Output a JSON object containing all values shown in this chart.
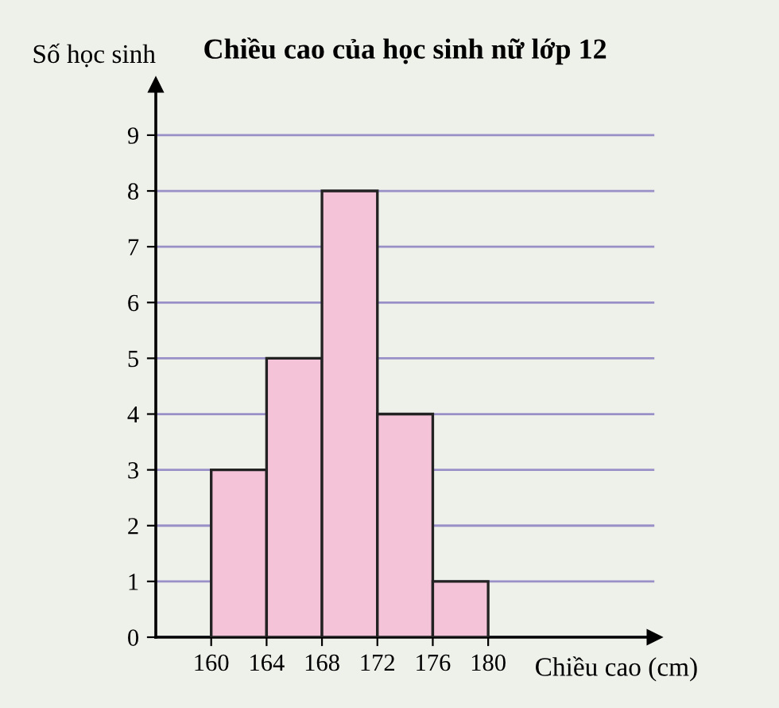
{
  "chart_data": {
    "type": "histogram",
    "title": "Chiều cao của học sinh nữ lớp 12",
    "xlabel": "Chiều cao (cm)",
    "ylabel": "Số học sinh",
    "bins": [
      160,
      164,
      168,
      172,
      176,
      180
    ],
    "values": [
      3,
      5,
      8,
      4,
      1
    ],
    "color": "#f5c3d8",
    "xlim": [
      156,
      192
    ],
    "xticks": [
      160,
      164,
      168,
      172,
      176,
      180
    ],
    "ylim": [
      0,
      9.9
    ],
    "yticks": [
      0,
      1,
      2,
      3,
      4,
      5,
      6,
      7,
      8,
      9
    ],
    "grid": "y",
    "legend": false
  }
}
